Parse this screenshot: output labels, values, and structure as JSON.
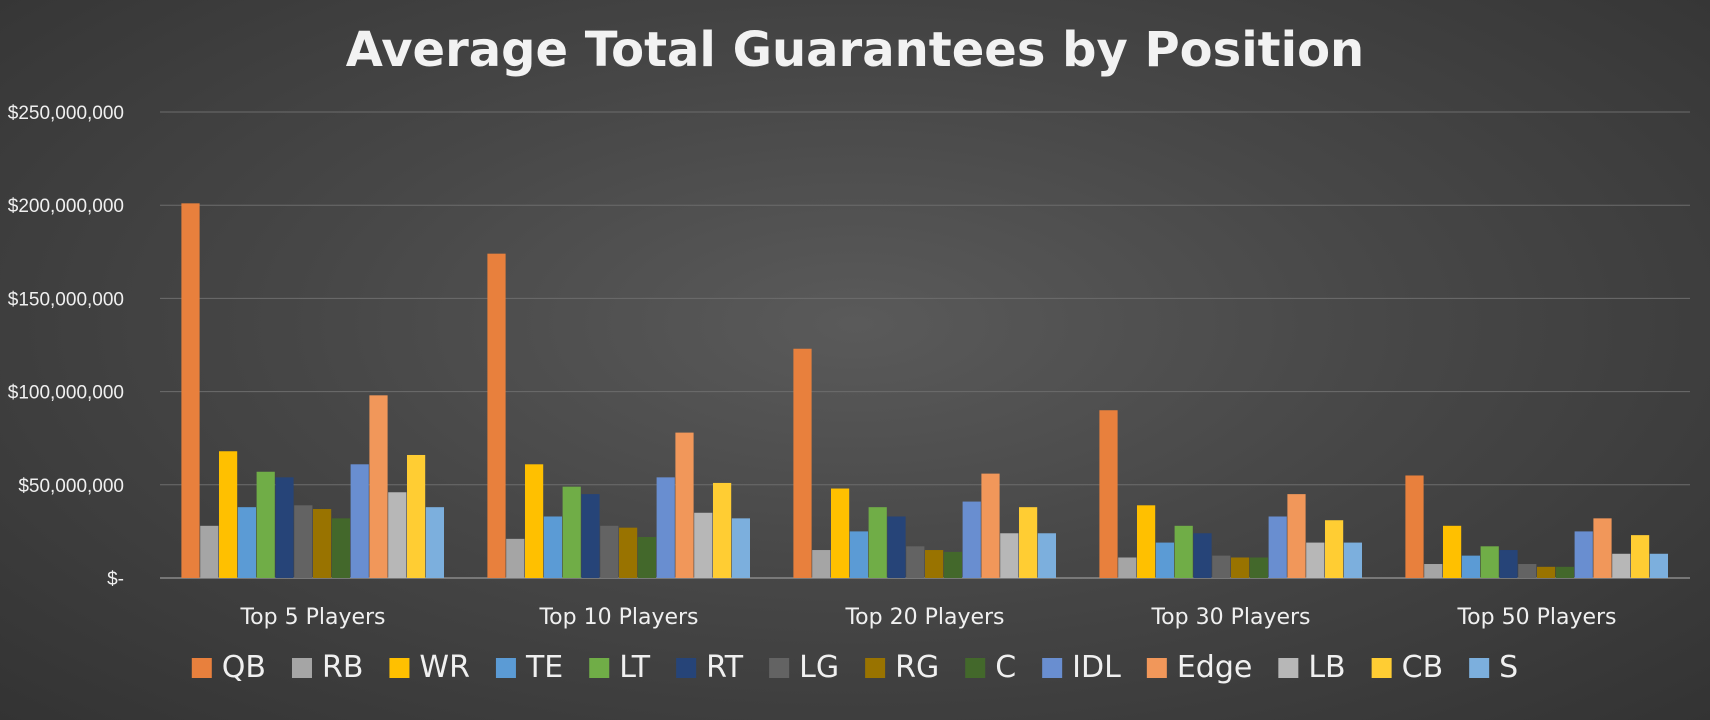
{
  "chart_data": {
    "type": "bar",
    "title": "Average Total Guarantees by Position",
    "xlabel": "",
    "ylabel": "",
    "ylim": [
      0,
      250000000
    ],
    "yticks": [
      0,
      50000000,
      100000000,
      150000000,
      200000000,
      250000000
    ],
    "ytick_labels": [
      "$-",
      "$50,000,000",
      "$100,000,000",
      "$150,000,000",
      "$200,000,000",
      "$250,000,000"
    ],
    "grid": true,
    "legend_position": "bottom",
    "categories": [
      "Top 5 Players",
      "Top 10 Players",
      "Top 20 Players",
      "Top 30 Players",
      "Top 50 Players"
    ],
    "series": [
      {
        "name": "QB",
        "color": "#e8803d",
        "values": [
          201000000,
          174000000,
          123000000,
          90000000,
          55000000
        ]
      },
      {
        "name": "RB",
        "color": "#a5a5a5",
        "values": [
          28000000,
          21000000,
          15000000,
          11000000,
          7500000
        ]
      },
      {
        "name": "WR",
        "color": "#ffc000",
        "values": [
          68000000,
          61000000,
          48000000,
          39000000,
          28000000
        ]
      },
      {
        "name": "TE",
        "color": "#5b9bd5",
        "values": [
          38000000,
          33000000,
          25000000,
          19000000,
          12000000
        ]
      },
      {
        "name": "LT",
        "color": "#70ad47",
        "values": [
          57000000,
          49000000,
          38000000,
          28000000,
          17000000
        ]
      },
      {
        "name": "RT",
        "color": "#264478",
        "values": [
          54000000,
          45000000,
          33000000,
          24000000,
          15000000
        ]
      },
      {
        "name": "LG",
        "color": "#636363",
        "values": [
          39000000,
          28000000,
          17000000,
          12000000,
          7500000
        ]
      },
      {
        "name": "RG",
        "color": "#997300",
        "values": [
          37000000,
          27000000,
          15000000,
          11000000,
          6000000
        ]
      },
      {
        "name": "C",
        "color": "#43682b",
        "values": [
          32000000,
          22000000,
          14000000,
          11000000,
          6000000
        ]
      },
      {
        "name": "IDL",
        "color": "#698ed0",
        "values": [
          61000000,
          54000000,
          41000000,
          33000000,
          25000000
        ]
      },
      {
        "name": "Edge",
        "color": "#f1975a",
        "values": [
          98000000,
          78000000,
          56000000,
          45000000,
          32000000
        ]
      },
      {
        "name": "LB",
        "color": "#b7b7b7",
        "values": [
          46000000,
          35000000,
          24000000,
          19000000,
          13000000
        ]
      },
      {
        "name": "CB",
        "color": "#ffcd33",
        "values": [
          66000000,
          51000000,
          38000000,
          31000000,
          23000000
        ]
      },
      {
        "name": "S",
        "color": "#7cafdd",
        "values": [
          38000000,
          32000000,
          24000000,
          19000000,
          13000000
        ]
      }
    ]
  }
}
